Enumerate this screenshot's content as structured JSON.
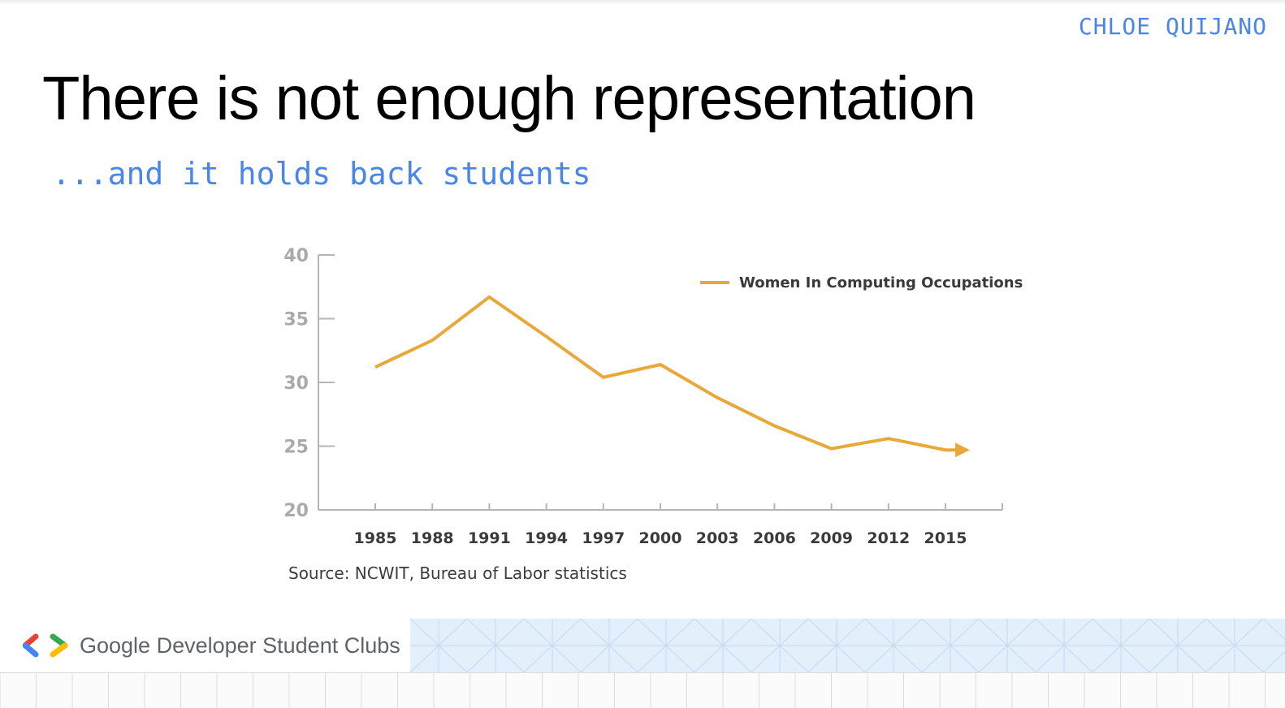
{
  "header": {
    "author": "CHLOE QUIJANO",
    "title": "There is not enough representation",
    "subtitle": "...and it holds back students"
  },
  "chart_data": {
    "type": "line",
    "x": [
      1985,
      1988,
      1991,
      1994,
      1997,
      2000,
      2003,
      2006,
      2009,
      2012,
      2015
    ],
    "series": [
      {
        "name": "Women In Computing Occupations",
        "values": [
          31.2,
          33.3,
          36.7,
          33.6,
          30.4,
          31.4,
          28.8,
          26.6,
          24.8,
          25.6,
          24.7
        ],
        "color": "#e8a93a"
      }
    ],
    "ylim": [
      20,
      40
    ],
    "yticks": [
      20,
      25,
      30,
      35,
      40
    ],
    "xlabel": "",
    "ylabel": "",
    "legend": "top-right",
    "grid": false,
    "trend_arrow": true
  },
  "source": "Source: NCWIT, Bureau of Labor statistics",
  "footer": {
    "brand": "Google Developer Student Clubs",
    "logo_colors": [
      "#ea4335",
      "#4285f4",
      "#34a853",
      "#fbbc04"
    ]
  }
}
